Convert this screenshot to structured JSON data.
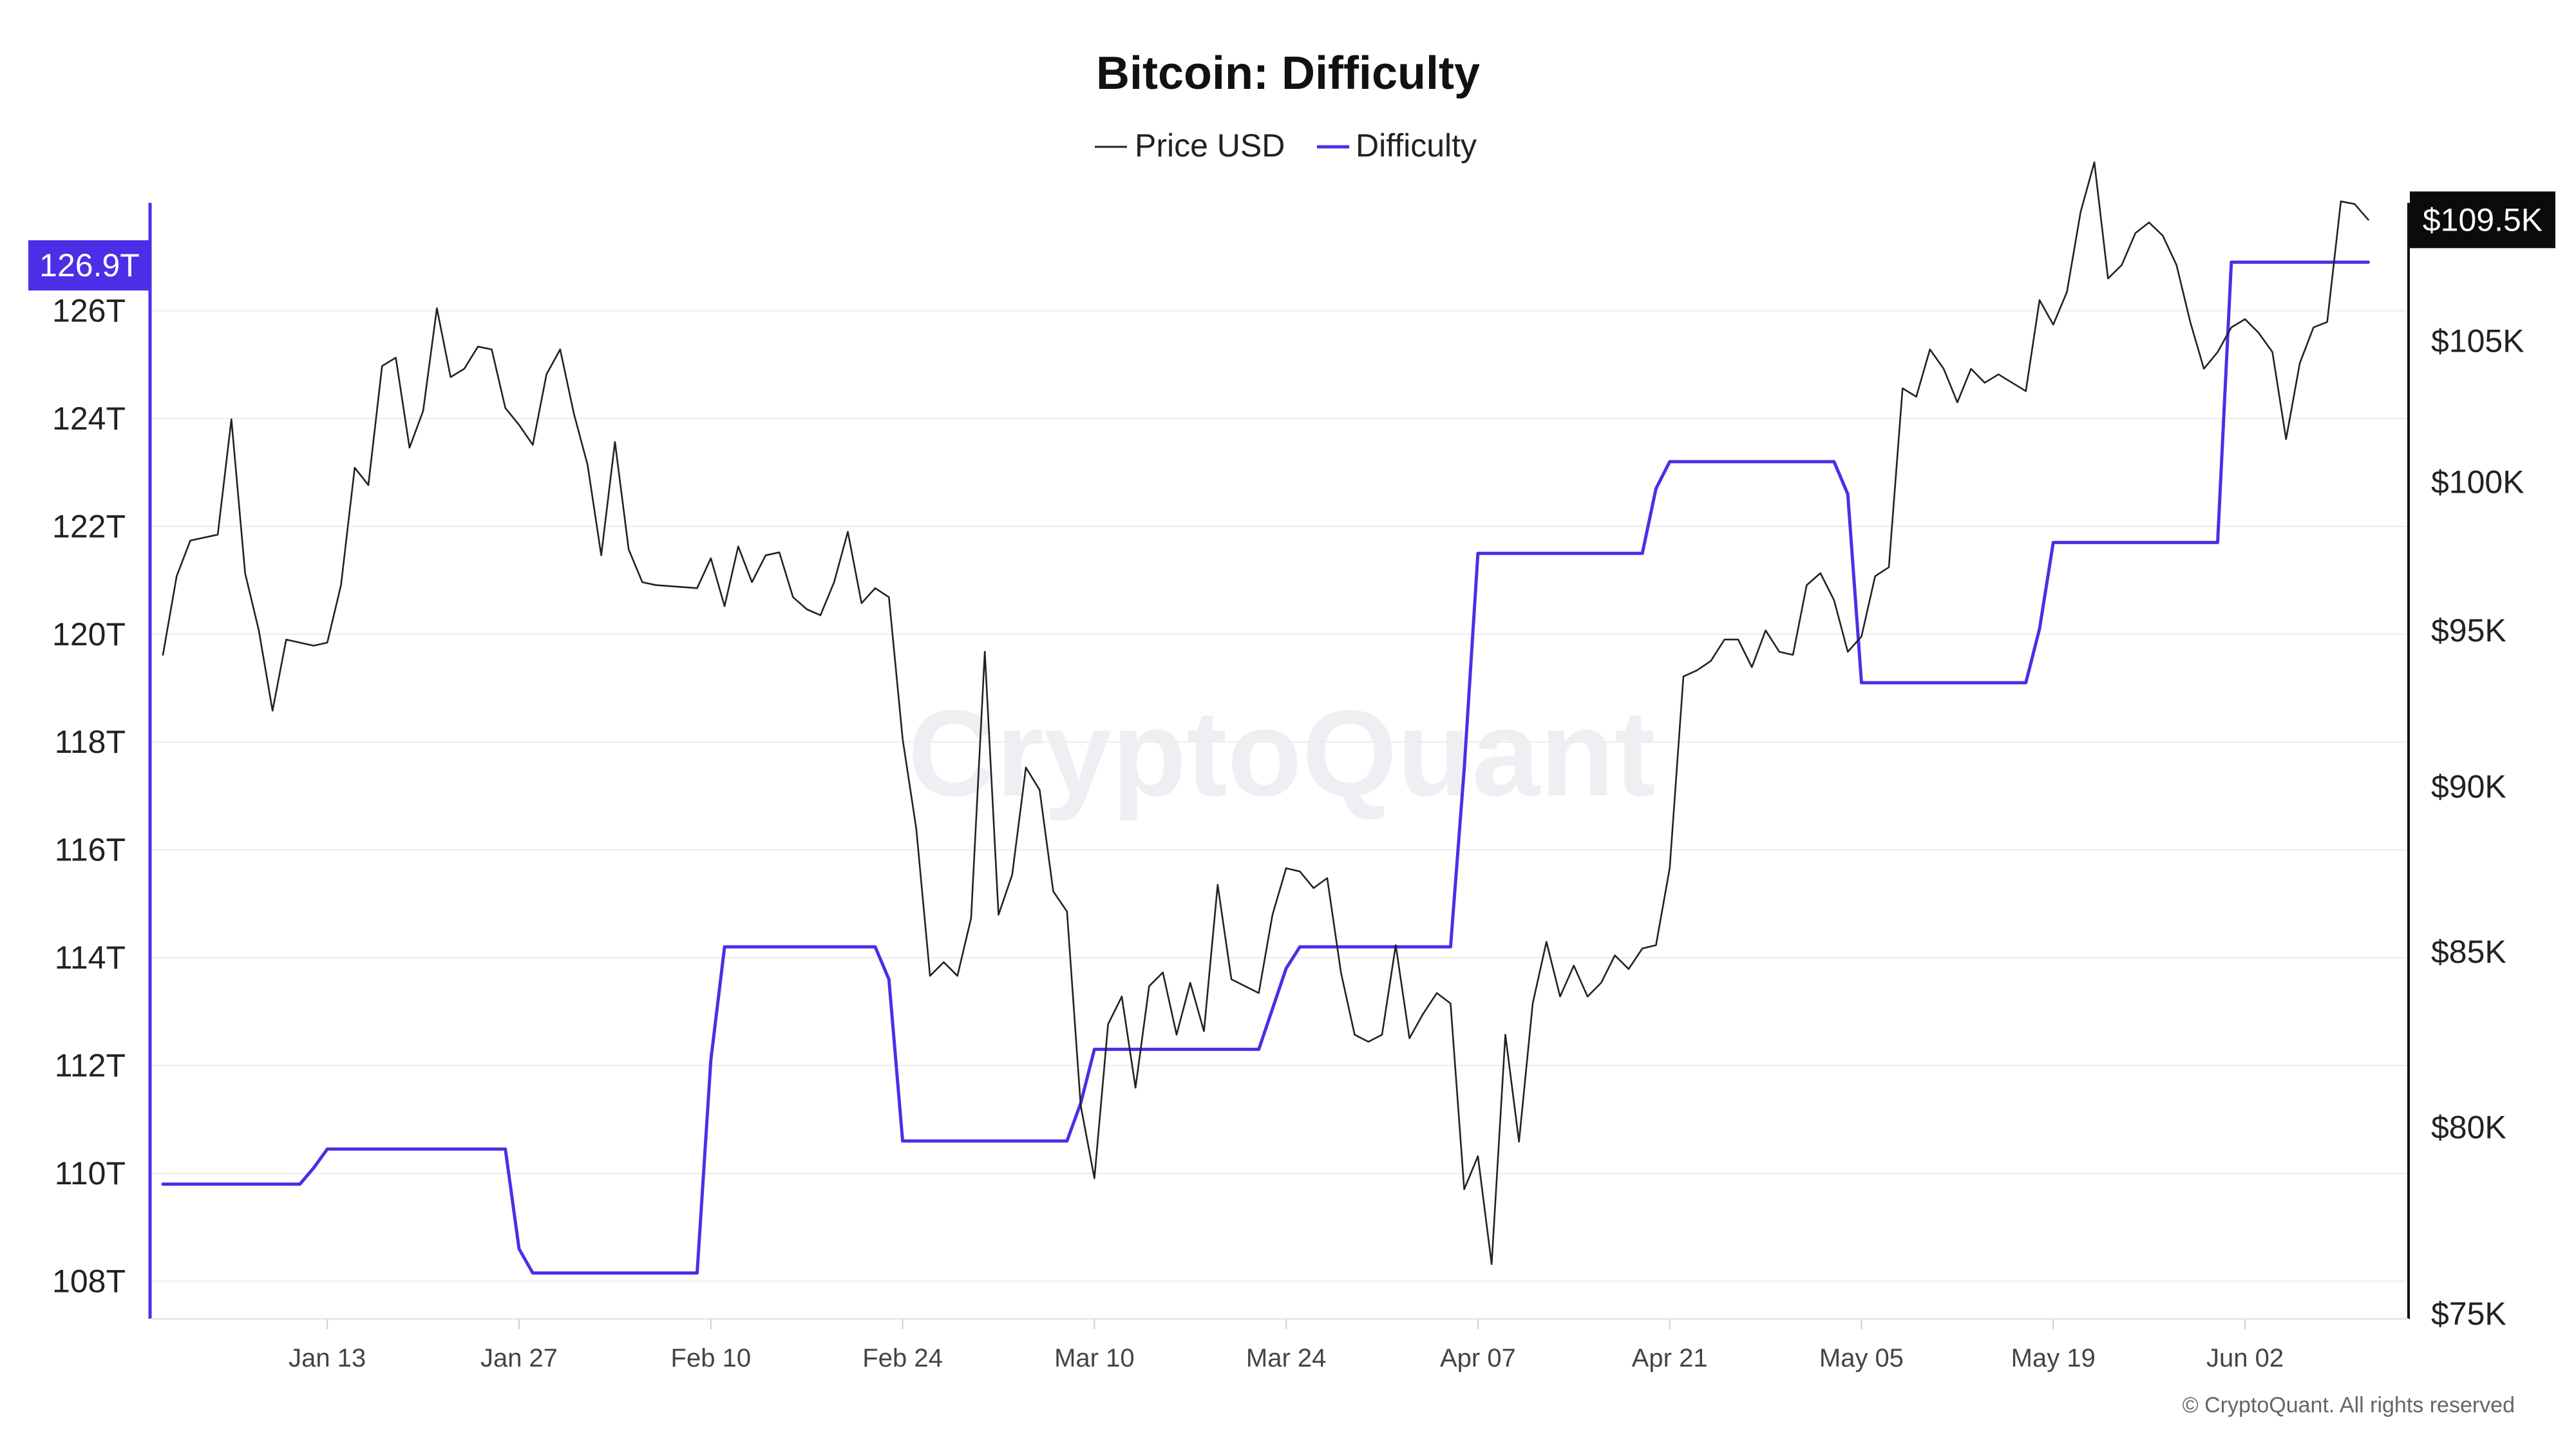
{
  "chart_data": {
    "type": "line",
    "title": "Bitcoin: Difficulty",
    "legend": [
      "Price USD",
      "Difficulty"
    ],
    "colors": {
      "price": "#222222",
      "difficulty": "#4a2fe6",
      "grid": "#ececec",
      "right_badge": "#0b0b0b"
    },
    "x_tick_labels": [
      "Jan 13",
      "Jan 27",
      "Feb 10",
      "Feb 24",
      "Mar 10",
      "Mar 24",
      "Apr 07",
      "Apr 21",
      "May 05",
      "May 19",
      "Jun 02"
    ],
    "x_range": [
      "2025-01-01",
      "2025-06-13"
    ],
    "left_axis": {
      "unit": "T",
      "range": [
        107.3,
        128.0
      ],
      "tick_labels": [
        "108T",
        "110T",
        "112T",
        "114T",
        "116T",
        "118T",
        "120T",
        "122T",
        "124T",
        "126T"
      ],
      "current_label": "126.9T"
    },
    "right_axis": {
      "unit": "USD",
      "scale": "log",
      "range": [
        75000,
        112000
      ],
      "tick_labels": [
        "$75K",
        "$80K",
        "$85K",
        "$90K",
        "$95K",
        "$100K",
        "$105K",
        "$109.5K"
      ],
      "current_label": "$109.5K"
    },
    "series": [
      {
        "name": "Difficulty",
        "axis": "left",
        "points": [
          [
            "2025-01-01",
            109.8
          ],
          [
            "2025-01-11",
            109.8
          ],
          [
            "2025-01-12",
            110.1
          ],
          [
            "2025-01-13",
            110.45
          ],
          [
            "2025-01-26",
            110.45
          ],
          [
            "2025-01-27",
            108.6
          ],
          [
            "2025-01-28",
            108.15
          ],
          [
            "2025-02-09",
            108.15
          ],
          [
            "2025-02-10",
            112.1
          ],
          [
            "2025-02-11",
            114.2
          ],
          [
            "2025-02-22",
            114.2
          ],
          [
            "2025-02-23",
            113.6
          ],
          [
            "2025-02-24",
            110.6
          ],
          [
            "2025-03-08",
            110.6
          ],
          [
            "2025-03-09",
            111.3
          ],
          [
            "2025-03-10",
            112.3
          ],
          [
            "2025-03-22",
            112.3
          ],
          [
            "2025-03-24",
            113.8
          ],
          [
            "2025-03-25",
            114.2
          ],
          [
            "2025-04-05",
            114.2
          ],
          [
            "2025-04-06",
            117.5
          ],
          [
            "2025-04-07",
            121.5
          ],
          [
            "2025-04-19",
            121.5
          ],
          [
            "2025-04-20",
            122.7
          ],
          [
            "2025-04-21",
            123.2
          ],
          [
            "2025-05-03",
            123.2
          ],
          [
            "2025-05-04",
            122.6
          ],
          [
            "2025-05-05",
            119.1
          ],
          [
            "2025-05-17",
            119.1
          ],
          [
            "2025-05-18",
            120.1
          ],
          [
            "2025-05-19",
            121.7
          ],
          [
            "2025-05-31",
            121.7
          ],
          [
            "2025-06-01",
            126.9
          ],
          [
            "2025-06-11",
            126.9
          ]
        ]
      },
      {
        "name": "Price USD",
        "axis": "right",
        "points": [
          [
            "2025-01-01",
            94200
          ],
          [
            "2025-01-02",
            96800
          ],
          [
            "2025-01-03",
            98000
          ],
          [
            "2025-01-05",
            98200
          ],
          [
            "2025-01-06",
            102200
          ],
          [
            "2025-01-07",
            96900
          ],
          [
            "2025-01-08",
            95000
          ],
          [
            "2025-01-09",
            92400
          ],
          [
            "2025-01-10",
            94700
          ],
          [
            "2025-01-12",
            94500
          ],
          [
            "2025-01-13",
            94600
          ],
          [
            "2025-01-14",
            96500
          ],
          [
            "2025-01-15",
            100500
          ],
          [
            "2025-01-16",
            99900
          ],
          [
            "2025-01-17",
            104100
          ],
          [
            "2025-01-18",
            104400
          ],
          [
            "2025-01-19",
            101200
          ],
          [
            "2025-01-20",
            102500
          ],
          [
            "2025-01-21",
            106200
          ],
          [
            "2025-01-22",
            103700
          ],
          [
            "2025-01-23",
            104000
          ],
          [
            "2025-01-24",
            104800
          ],
          [
            "2025-01-25",
            104700
          ],
          [
            "2025-01-26",
            102600
          ],
          [
            "2025-01-27",
            102000
          ],
          [
            "2025-01-28",
            101300
          ],
          [
            "2025-01-29",
            103800
          ],
          [
            "2025-01-30",
            104700
          ],
          [
            "2025-01-31",
            102400
          ],
          [
            "2025-02-01",
            100600
          ],
          [
            "2025-02-02",
            97500
          ],
          [
            "2025-02-03",
            101400
          ],
          [
            "2025-02-04",
            97700
          ],
          [
            "2025-02-05",
            96600
          ],
          [
            "2025-02-06",
            96500
          ],
          [
            "2025-02-09",
            96400
          ],
          [
            "2025-02-10",
            97400
          ],
          [
            "2025-02-11",
            95800
          ],
          [
            "2025-02-12",
            97800
          ],
          [
            "2025-02-13",
            96600
          ],
          [
            "2025-02-14",
            97500
          ],
          [
            "2025-02-15",
            97600
          ],
          [
            "2025-02-16",
            96100
          ],
          [
            "2025-02-17",
            95700
          ],
          [
            "2025-02-18",
            95500
          ],
          [
            "2025-02-19",
            96600
          ],
          [
            "2025-02-20",
            98300
          ],
          [
            "2025-02-21",
            95900
          ],
          [
            "2025-02-22",
            96400
          ],
          [
            "2025-02-23",
            96100
          ],
          [
            "2025-02-24",
            91500
          ],
          [
            "2025-02-25",
            88700
          ],
          [
            "2025-02-26",
            84300
          ],
          [
            "2025-02-27",
            84700
          ],
          [
            "2025-02-28",
            84300
          ],
          [
            "2025-03-01",
            86000
          ],
          [
            "2025-03-02",
            94300
          ],
          [
            "2025-03-03",
            86100
          ],
          [
            "2025-03-04",
            87300
          ],
          [
            "2025-03-05",
            90600
          ],
          [
            "2025-03-06",
            89900
          ],
          [
            "2025-03-07",
            86800
          ],
          [
            "2025-03-08",
            86200
          ],
          [
            "2025-03-09",
            80600
          ],
          [
            "2025-03-10",
            78600
          ],
          [
            "2025-03-11",
            82900
          ],
          [
            "2025-03-12",
            83700
          ],
          [
            "2025-03-13",
            81100
          ],
          [
            "2025-03-14",
            84000
          ],
          [
            "2025-03-15",
            84400
          ],
          [
            "2025-03-16",
            82600
          ],
          [
            "2025-03-17",
            84100
          ],
          [
            "2025-03-18",
            82700
          ],
          [
            "2025-03-19",
            87000
          ],
          [
            "2025-03-20",
            84200
          ],
          [
            "2025-03-21",
            84000
          ],
          [
            "2025-03-22",
            83800
          ],
          [
            "2025-03-23",
            86100
          ],
          [
            "2025-03-24",
            87500
          ],
          [
            "2025-03-25",
            87400
          ],
          [
            "2025-03-26",
            86900
          ],
          [
            "2025-03-27",
            87200
          ],
          [
            "2025-03-28",
            84400
          ],
          [
            "2025-03-29",
            82600
          ],
          [
            "2025-03-30",
            82400
          ],
          [
            "2025-03-31",
            82600
          ],
          [
            "2025-04-01",
            85200
          ],
          [
            "2025-04-02",
            82500
          ],
          [
            "2025-04-03",
            83200
          ],
          [
            "2025-04-04",
            83800
          ],
          [
            "2025-04-05",
            83500
          ],
          [
            "2025-04-06",
            78300
          ],
          [
            "2025-04-07",
            79200
          ],
          [
            "2025-04-08",
            76300
          ],
          [
            "2025-04-09",
            82600
          ],
          [
            "2025-04-10",
            79600
          ],
          [
            "2025-04-11",
            83500
          ],
          [
            "2025-04-12",
            85300
          ],
          [
            "2025-04-13",
            83700
          ],
          [
            "2025-04-14",
            84600
          ],
          [
            "2025-04-15",
            83700
          ],
          [
            "2025-04-16",
            84100
          ],
          [
            "2025-04-17",
            84900
          ],
          [
            "2025-04-18",
            84500
          ],
          [
            "2025-04-19",
            85100
          ],
          [
            "2025-04-20",
            85200
          ],
          [
            "2025-04-21",
            87500
          ],
          [
            "2025-04-22",
            93500
          ],
          [
            "2025-04-23",
            93700
          ],
          [
            "2025-04-24",
            94000
          ],
          [
            "2025-04-25",
            94700
          ],
          [
            "2025-04-26",
            94700
          ],
          [
            "2025-04-27",
            93800
          ],
          [
            "2025-04-28",
            95000
          ],
          [
            "2025-04-29",
            94300
          ],
          [
            "2025-04-30",
            94200
          ],
          [
            "2025-05-01",
            96500
          ],
          [
            "2025-05-02",
            96900
          ],
          [
            "2025-05-03",
            96000
          ],
          [
            "2025-05-04",
            94300
          ],
          [
            "2025-05-05",
            94800
          ],
          [
            "2025-05-06",
            96800
          ],
          [
            "2025-05-07",
            97100
          ],
          [
            "2025-05-08",
            103300
          ],
          [
            "2025-05-09",
            103000
          ],
          [
            "2025-05-10",
            104700
          ],
          [
            "2025-05-11",
            104000
          ],
          [
            "2025-05-12",
            102800
          ],
          [
            "2025-05-13",
            104000
          ],
          [
            "2025-05-14",
            103500
          ],
          [
            "2025-05-15",
            103800
          ],
          [
            "2025-05-16",
            103500
          ],
          [
            "2025-05-17",
            103200
          ],
          [
            "2025-05-18",
            106500
          ],
          [
            "2025-05-19",
            105600
          ],
          [
            "2025-05-20",
            106800
          ],
          [
            "2025-05-21",
            109800
          ],
          [
            "2025-05-22",
            111700
          ],
          [
            "2025-05-23",
            107300
          ],
          [
            "2025-05-24",
            107800
          ],
          [
            "2025-05-25",
            109000
          ],
          [
            "2025-05-26",
            109400
          ],
          [
            "2025-05-27",
            108900
          ],
          [
            "2025-05-28",
            107800
          ],
          [
            "2025-05-29",
            105700
          ],
          [
            "2025-05-30",
            104000
          ],
          [
            "2025-05-31",
            104600
          ],
          [
            "2025-06-01",
            105500
          ],
          [
            "2025-06-02",
            105800
          ],
          [
            "2025-06-03",
            105300
          ],
          [
            "2025-06-04",
            104600
          ],
          [
            "2025-06-05",
            101500
          ],
          [
            "2025-06-06",
            104200
          ],
          [
            "2025-06-07",
            105500
          ],
          [
            "2025-06-08",
            105700
          ],
          [
            "2025-06-09",
            110200
          ],
          [
            "2025-06-10",
            110100
          ],
          [
            "2025-06-11",
            109500
          ]
        ]
      }
    ],
    "watermark": "CryptoQuant",
    "copyright": "© CryptoQuant. All rights reserved"
  }
}
